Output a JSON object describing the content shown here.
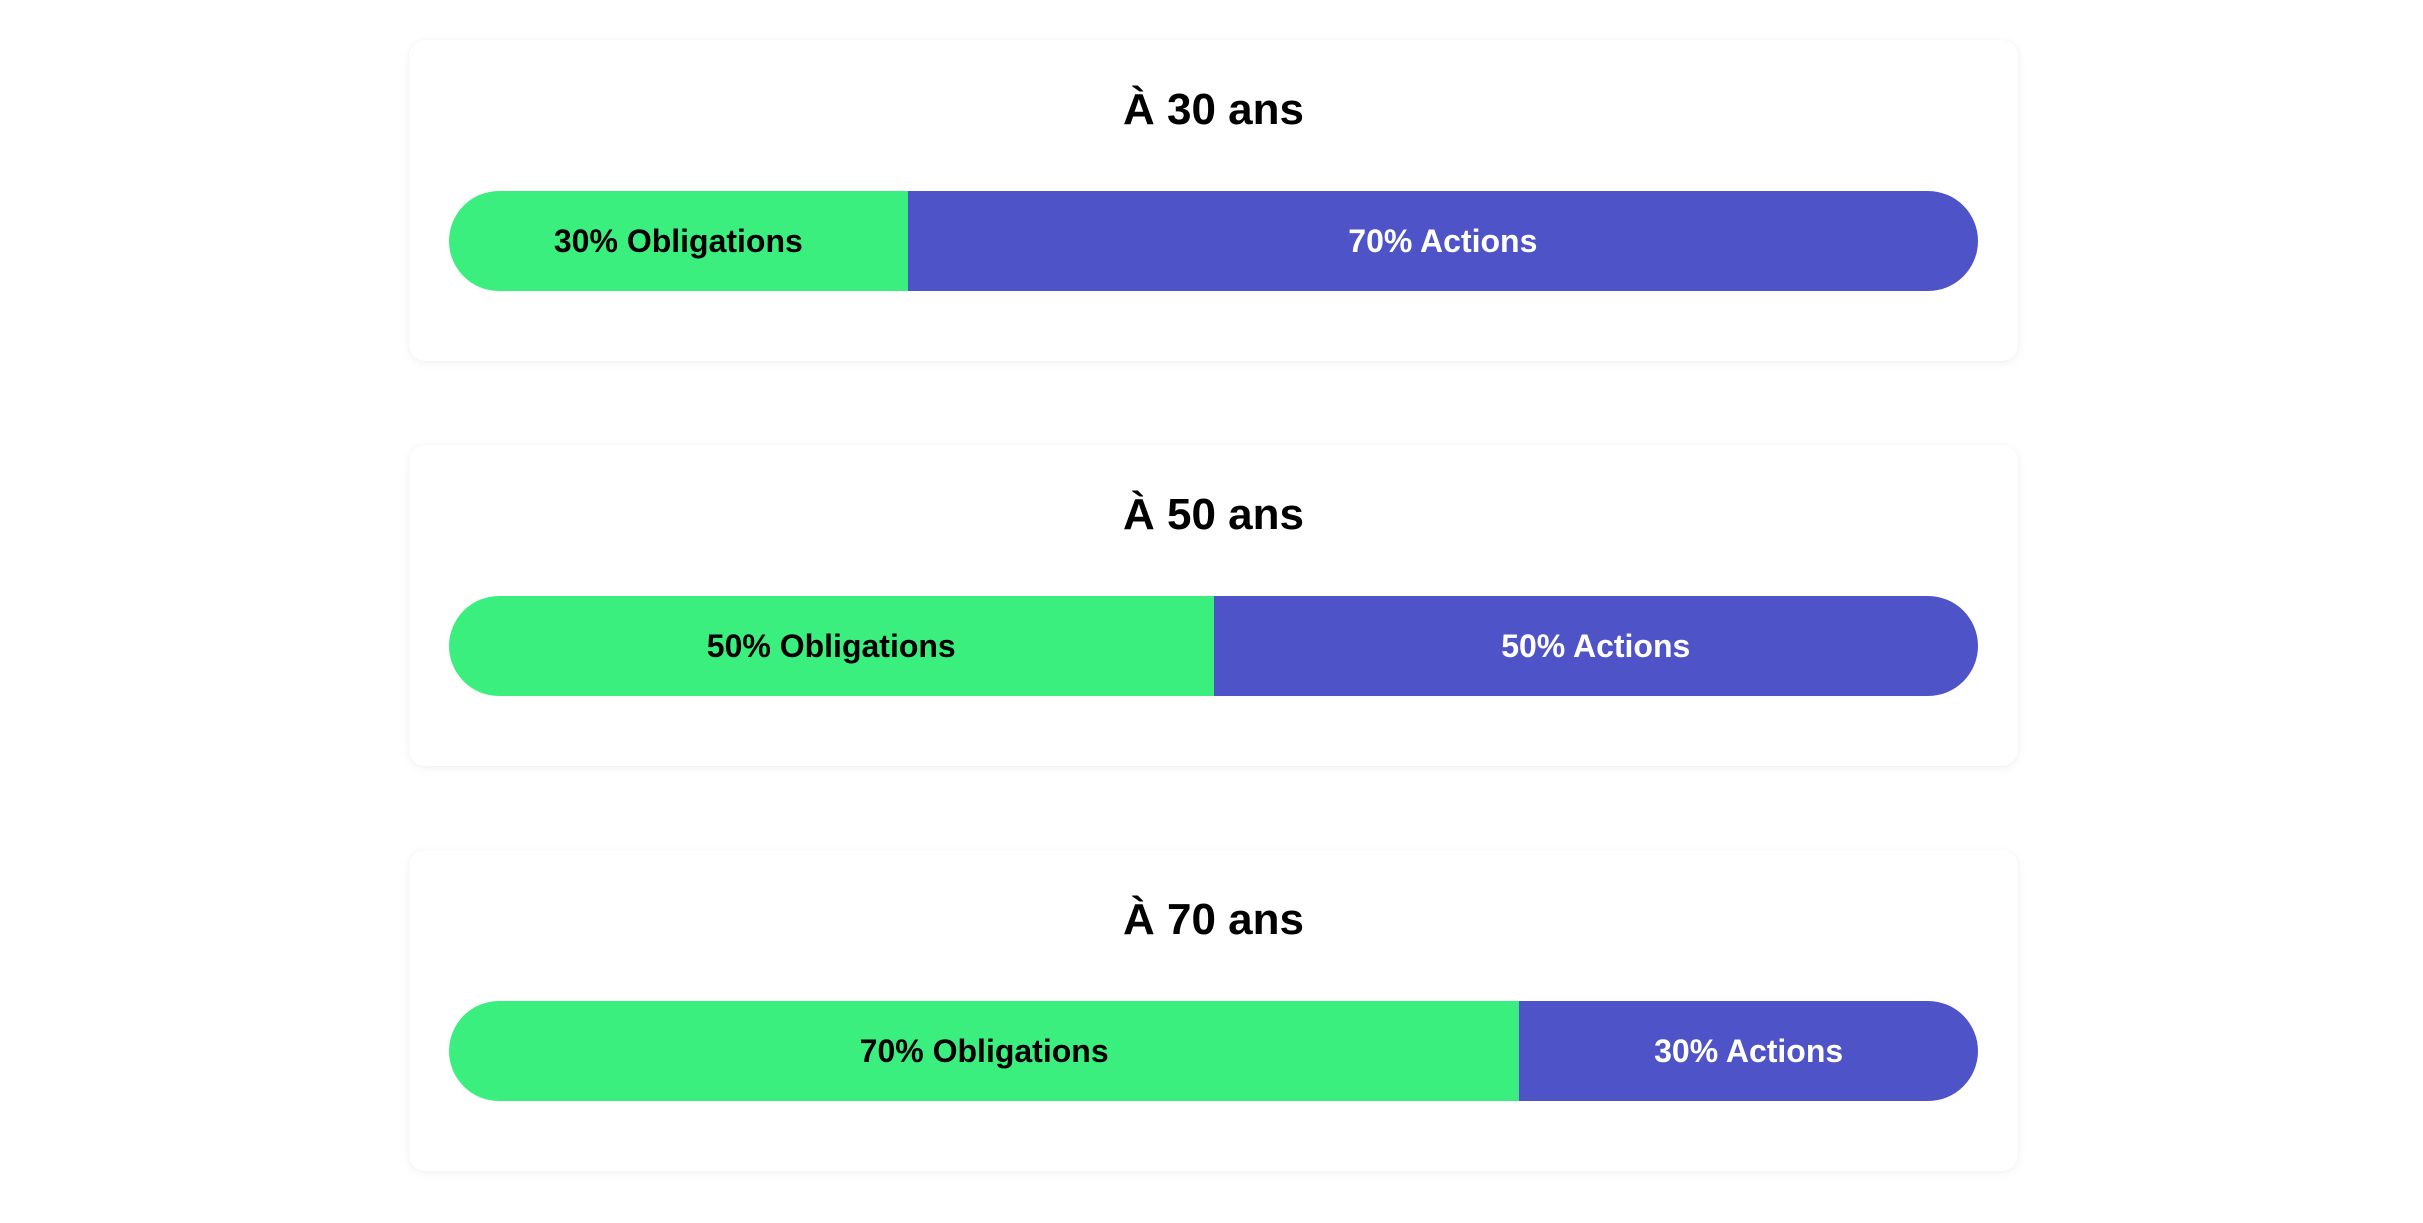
{
  "colors": {
    "obligations": "#3bef7f",
    "actions": "#4f53c8",
    "background": "#ffffff"
  },
  "chart_data": [
    {
      "type": "bar",
      "stacked": true,
      "orientation": "horizontal",
      "title": "À 30 ans",
      "segments": [
        {
          "label": "30% Obligations",
          "value": 30
        },
        {
          "label": "70% Actions",
          "value": 70
        }
      ]
    },
    {
      "type": "bar",
      "stacked": true,
      "orientation": "horizontal",
      "title": "À 50 ans",
      "segments": [
        {
          "label": "50% Obligations",
          "value": 50
        },
        {
          "label": "50% Actions",
          "value": 50
        }
      ]
    },
    {
      "type": "bar",
      "stacked": true,
      "orientation": "horizontal",
      "title": "À 70 ans",
      "segments": [
        {
          "label": "70% Obligations",
          "value": 70
        },
        {
          "label": "30% Actions",
          "value": 30
        }
      ]
    }
  ]
}
